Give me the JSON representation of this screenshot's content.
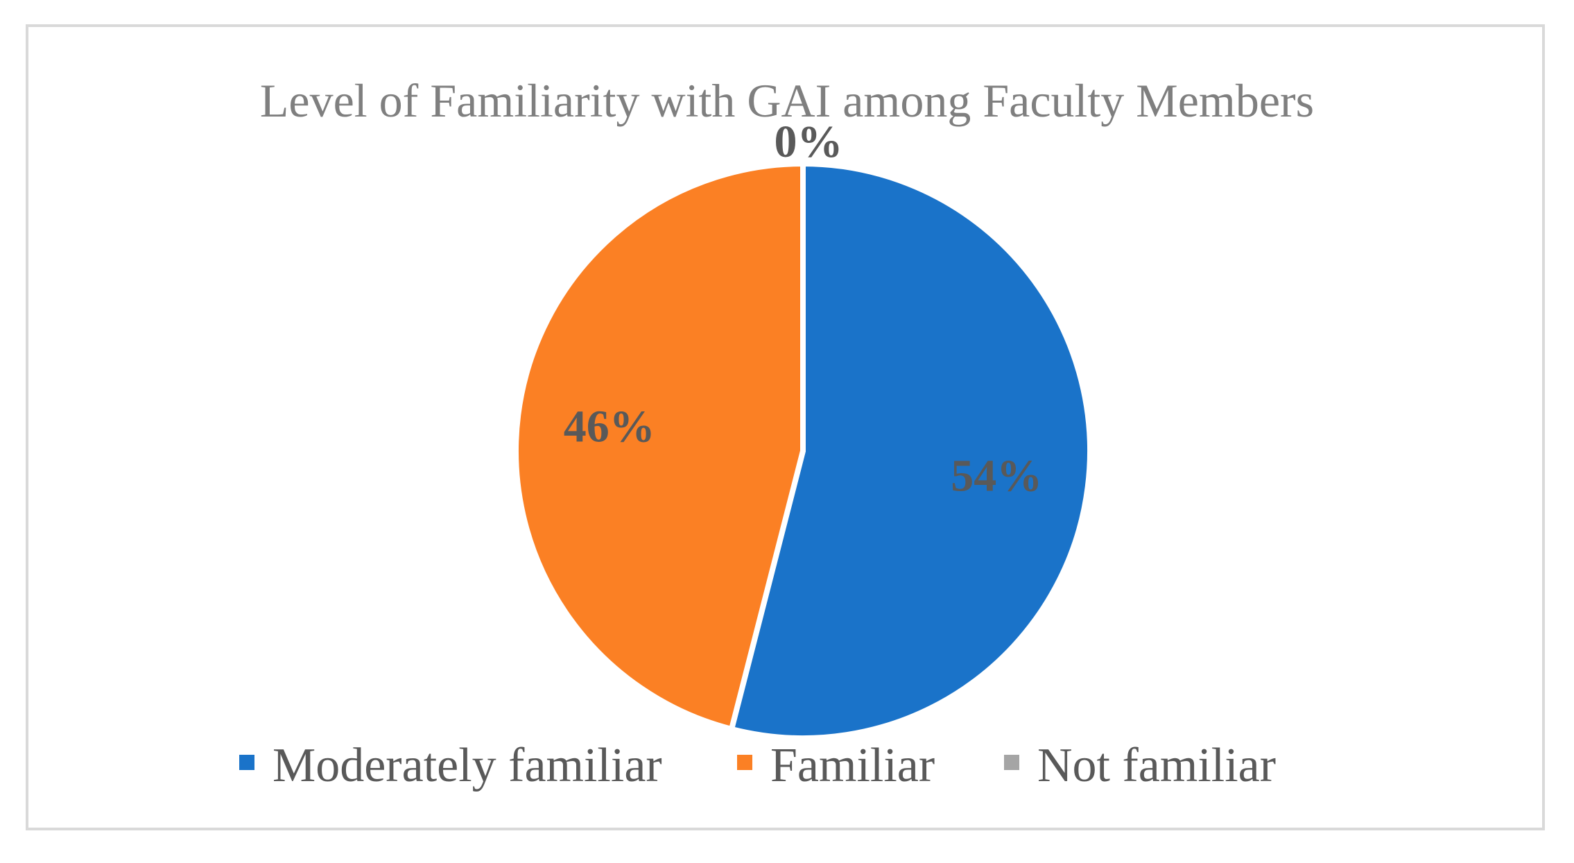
{
  "chart_data": {
    "type": "pie",
    "title": "Level of Familiarity with GAI among Faculty Members",
    "categories": [
      "Moderately familiar",
      "Familiar",
      "Not familiar"
    ],
    "values": [
      54,
      46,
      0
    ],
    "labels": [
      "54%",
      "46%",
      "0%"
    ],
    "colors": [
      "#1a73c9",
      "#fb8024",
      "#a5a5a5"
    ],
    "legend_position": "bottom"
  }
}
